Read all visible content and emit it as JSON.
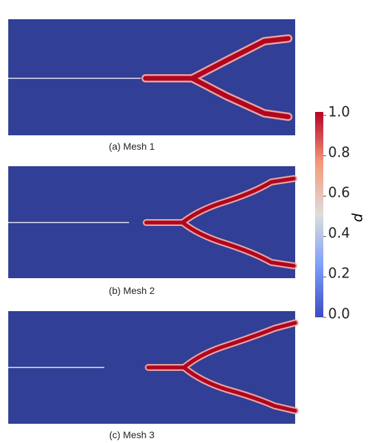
{
  "panels": [
    {
      "caption": "(a) Mesh 1"
    },
    {
      "caption": "(b) Mesh 2"
    },
    {
      "caption": "(c) Mesh 3"
    }
  ],
  "colorbar": {
    "label": "d",
    "lim": [
      0,
      1
    ],
    "ticks": [
      {
        "value": 0,
        "label": "0.0"
      },
      0.2,
      0.4,
      0.6,
      0.8,
      {
        "value": 1,
        "label": "1.0"
      }
    ]
  }
}
